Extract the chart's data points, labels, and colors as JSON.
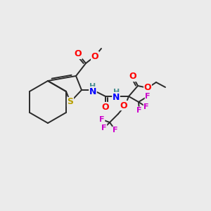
{
  "bg_color": "#ebebeb",
  "bond_color": "#2a2a2a",
  "atoms": {
    "S": {
      "color": "#b8a000"
    },
    "O": {
      "color": "#ff0000"
    },
    "N": {
      "color": "#0000ff"
    },
    "H": {
      "color": "#4a9090"
    },
    "F": {
      "color": "#cc00cc"
    }
  },
  "figsize": [
    3.0,
    3.0
  ],
  "dpi": 100
}
